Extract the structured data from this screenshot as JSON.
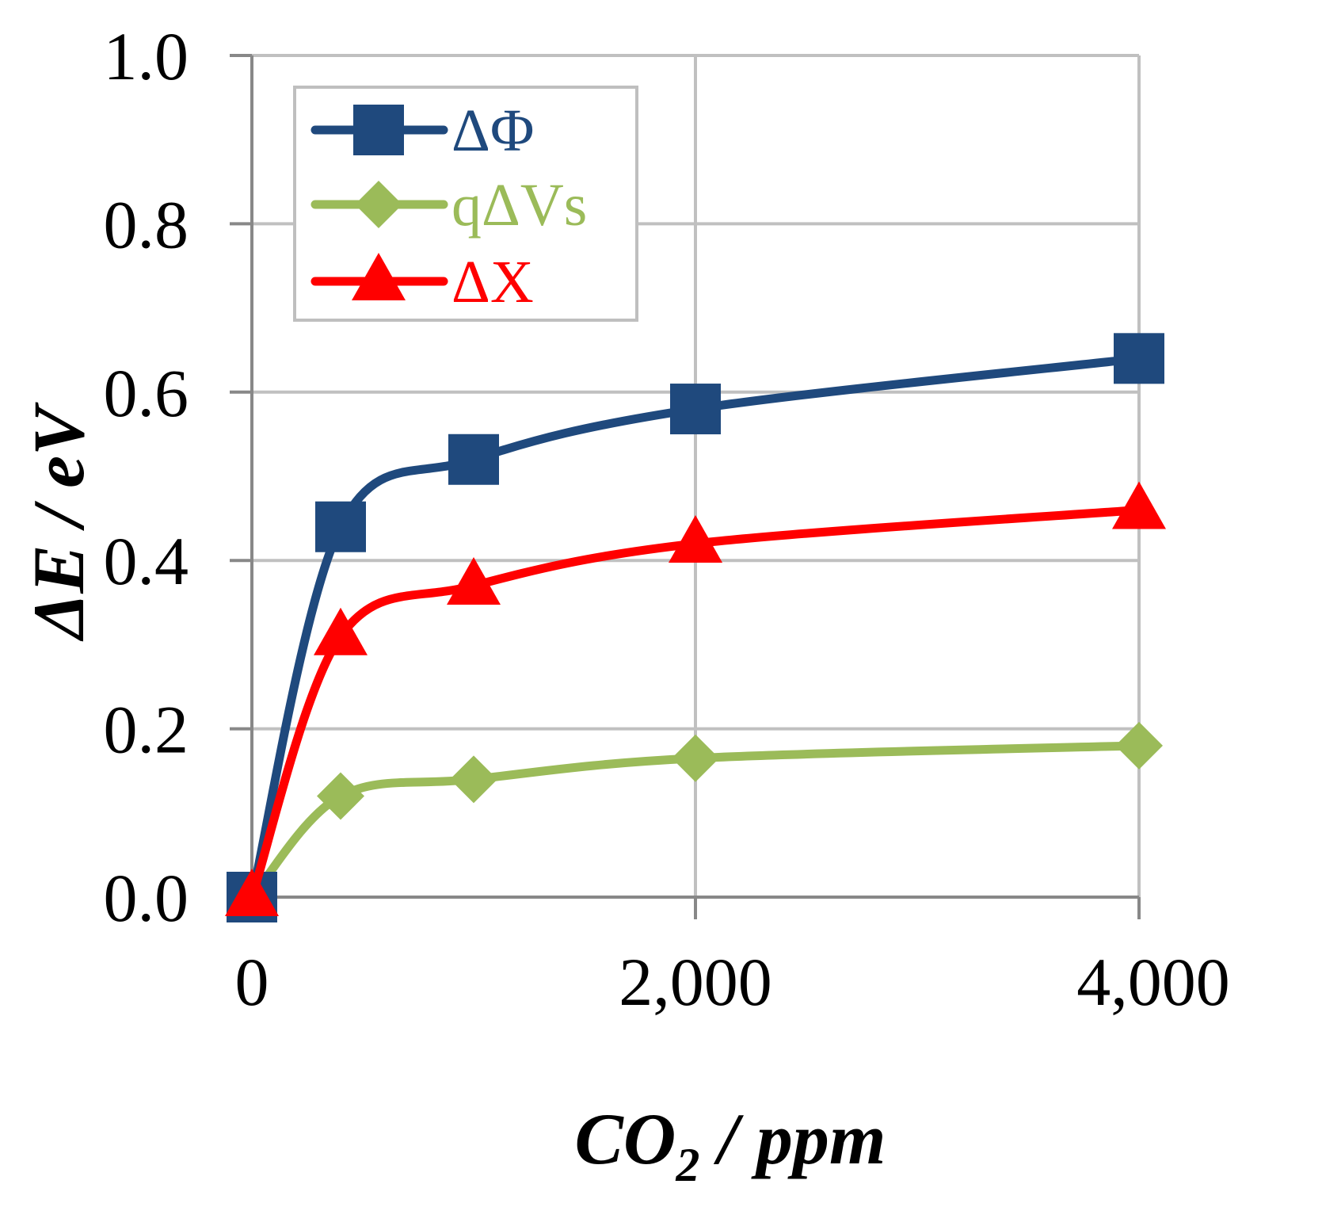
{
  "chart_data": {
    "type": "line",
    "xlabel": "CO2 / ppm",
    "xlabel_main": "CO",
    "xlabel_sub": "2",
    "xlabel_rest": " / ppm",
    "ylabel": "ΔE / eV",
    "xlim": [
      0,
      4000
    ],
    "ylim": [
      0,
      1.0
    ],
    "x_ticks": [
      0,
      2000,
      4000
    ],
    "x_tick_labels": [
      "0",
      "2,000",
      "4,000"
    ],
    "y_ticks": [
      0,
      0.2,
      0.4,
      0.6,
      0.8,
      1.0
    ],
    "y_tick_labels": [
      "0.0",
      "0.2",
      "0.4",
      "0.6",
      "0.8",
      "1.0"
    ],
    "grid": true,
    "legend_position": "top-left",
    "x": [
      0,
      400,
      1000,
      2000,
      4000
    ],
    "series": [
      {
        "name": "ΔΦ",
        "marker": "square",
        "color": "#1f497d",
        "values": [
          0.0,
          0.44,
          0.52,
          0.58,
          0.64
        ]
      },
      {
        "name": "qΔVs",
        "marker": "diamond",
        "color": "#9bbb59",
        "values": [
          0.0,
          0.12,
          0.14,
          0.165,
          0.18
        ]
      },
      {
        "name": "ΔX",
        "marker": "triangle",
        "color": "#ff0000",
        "values": [
          0.0,
          0.31,
          0.37,
          0.42,
          0.46
        ]
      }
    ]
  }
}
